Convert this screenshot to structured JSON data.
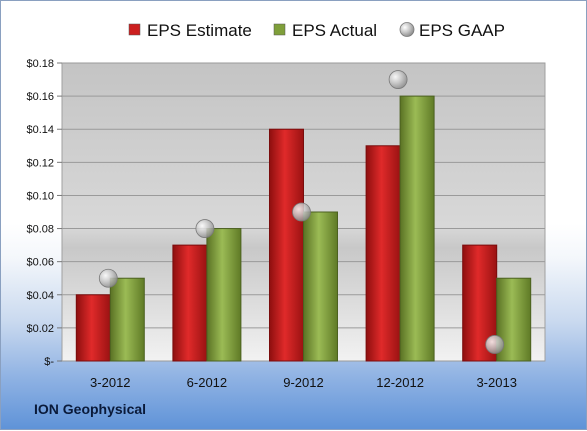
{
  "company": "ION Geophysical",
  "chart_data": {
    "type": "bar",
    "categories": [
      "3-2012",
      "6-2012",
      "9-2012",
      "12-2012",
      "3-2013"
    ],
    "series": [
      {
        "name": "EPS Estimate",
        "kind": "bar",
        "color": "#cc1f1f",
        "values": [
          0.04,
          0.07,
          0.14,
          0.13,
          0.07
        ]
      },
      {
        "name": "EPS Actual",
        "kind": "bar",
        "color": "#7f9f3a",
        "values": [
          0.05,
          0.08,
          0.09,
          0.16,
          0.05
        ]
      },
      {
        "name": "EPS GAAP",
        "kind": "marker",
        "color": "#b8b8b8",
        "values": [
          0.05,
          0.08,
          0.09,
          0.17,
          0.01
        ]
      }
    ],
    "ylim": [
      0,
      0.18
    ],
    "yticks": [
      0,
      0.02,
      0.04,
      0.06,
      0.08,
      0.1,
      0.12,
      0.14,
      0.16,
      0.18
    ],
    "ytick_labels": [
      "$-",
      "$0.02",
      "$0.04",
      "$0.06",
      "$0.08",
      "$0.10",
      "$0.12",
      "$0.14",
      "$0.16",
      "$0.18"
    ],
    "grid": true,
    "legend": "top"
  }
}
